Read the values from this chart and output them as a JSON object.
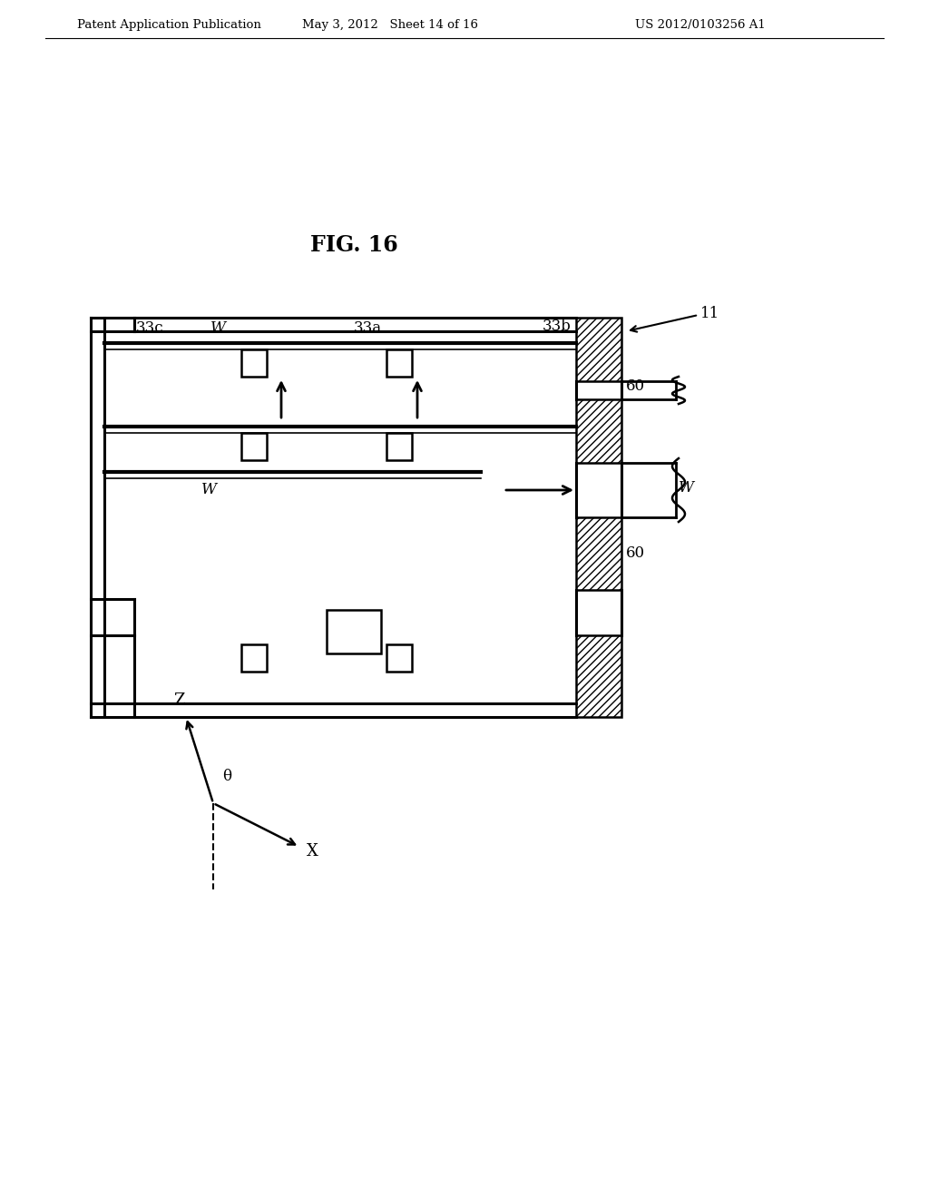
{
  "bg_color": "#ffffff",
  "header_left": "Patent Application Publication",
  "header_mid": "May 3, 2012   Sheet 14 of 16",
  "header_right": "US 2012/0103256 A1",
  "line_color": "#000000",
  "lw": 1.8
}
